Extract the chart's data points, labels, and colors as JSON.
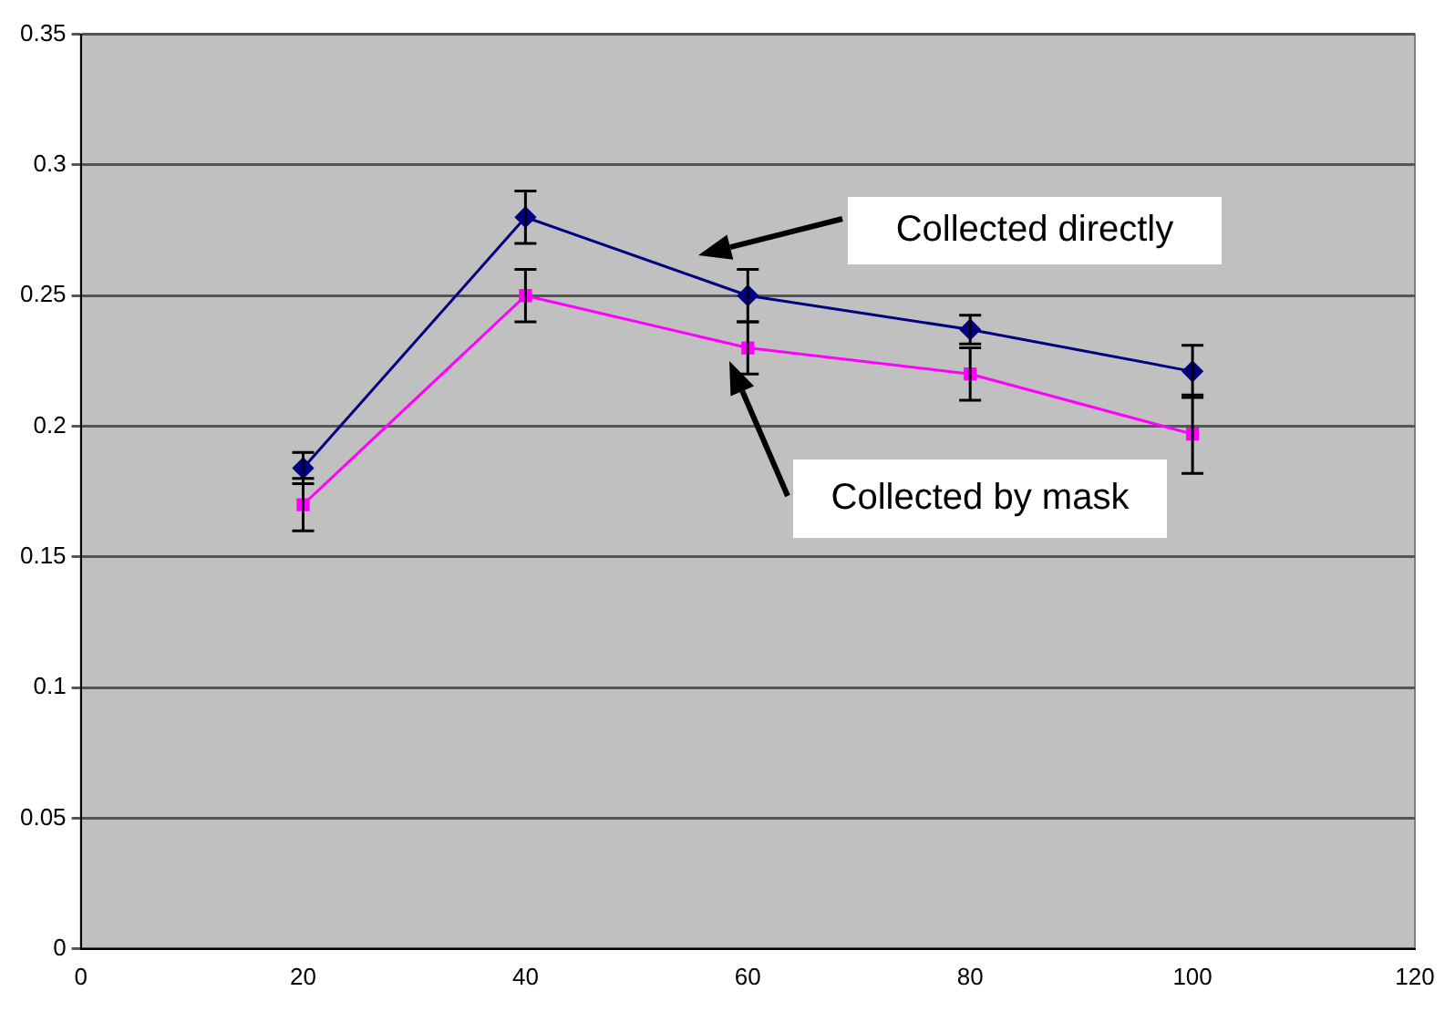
{
  "chart_data": {
    "type": "line",
    "x": [
      20,
      40,
      60,
      80,
      100
    ],
    "series": [
      {
        "color": "#000080",
        "marker": "diamond",
        "values": [
          0.184,
          0.28,
          0.25,
          0.237,
          0.221
        ],
        "errors": [
          0.006,
          0.01,
          0.01,
          0.0055,
          0.01
        ]
      },
      {
        "color": "#ff00ff",
        "marker": "square",
        "values": [
          0.17,
          0.25,
          0.23,
          0.22,
          0.197
        ],
        "errors": [
          0.01,
          0.01,
          0.01,
          0.01,
          0.015
        ]
      }
    ],
    "xlim": [
      0,
      120
    ],
    "xticks": [
      0,
      20,
      40,
      60,
      80,
      100,
      120
    ],
    "ylim": [
      0,
      0.35
    ],
    "yticks": [
      0,
      0.05,
      0.1,
      0.15,
      0.2,
      0.25,
      0.3,
      0.35
    ],
    "grid": "y",
    "legend": false,
    "line_style": "solid",
    "annotations": [
      "Collected directly",
      "Collected by mask"
    ]
  }
}
